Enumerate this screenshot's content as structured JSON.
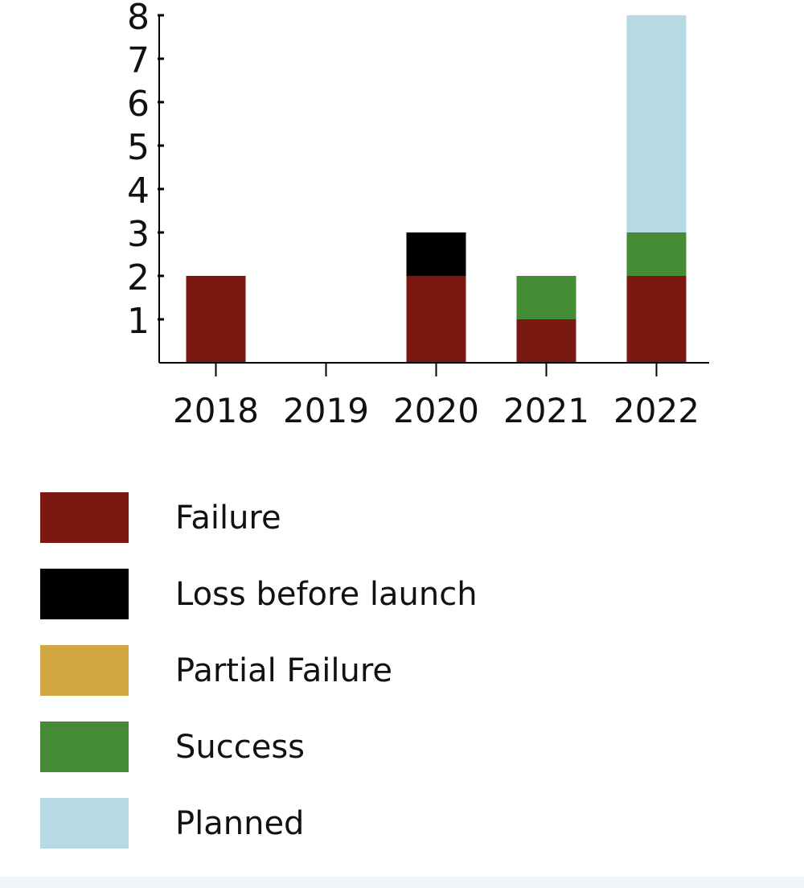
{
  "chart_data": {
    "type": "bar",
    "stacked": true,
    "categories": [
      "2018",
      "2019",
      "2020",
      "2021",
      "2022"
    ],
    "series": [
      {
        "name": "Failure",
        "color": "#7b1911",
        "values": [
          2,
          0,
          2,
          1,
          2
        ]
      },
      {
        "name": "Loss before launch",
        "color": "#000000",
        "values": [
          0,
          0,
          1,
          0,
          0
        ]
      },
      {
        "name": "Partial Failure",
        "color": "#d1a744",
        "values": [
          0,
          0,
          0,
          0,
          0
        ]
      },
      {
        "name": "Success",
        "color": "#458a35",
        "values": [
          0,
          0,
          0,
          1,
          1
        ]
      },
      {
        "name": "Planned",
        "color": "#b6d9e4",
        "values": [
          0,
          0,
          0,
          0,
          5
        ]
      }
    ],
    "yticks": [
      "1",
      "2",
      "3",
      "4",
      "5",
      "6",
      "7",
      "8"
    ],
    "ylim": [
      0,
      8
    ],
    "grid": false,
    "legend_position": "bottom"
  }
}
